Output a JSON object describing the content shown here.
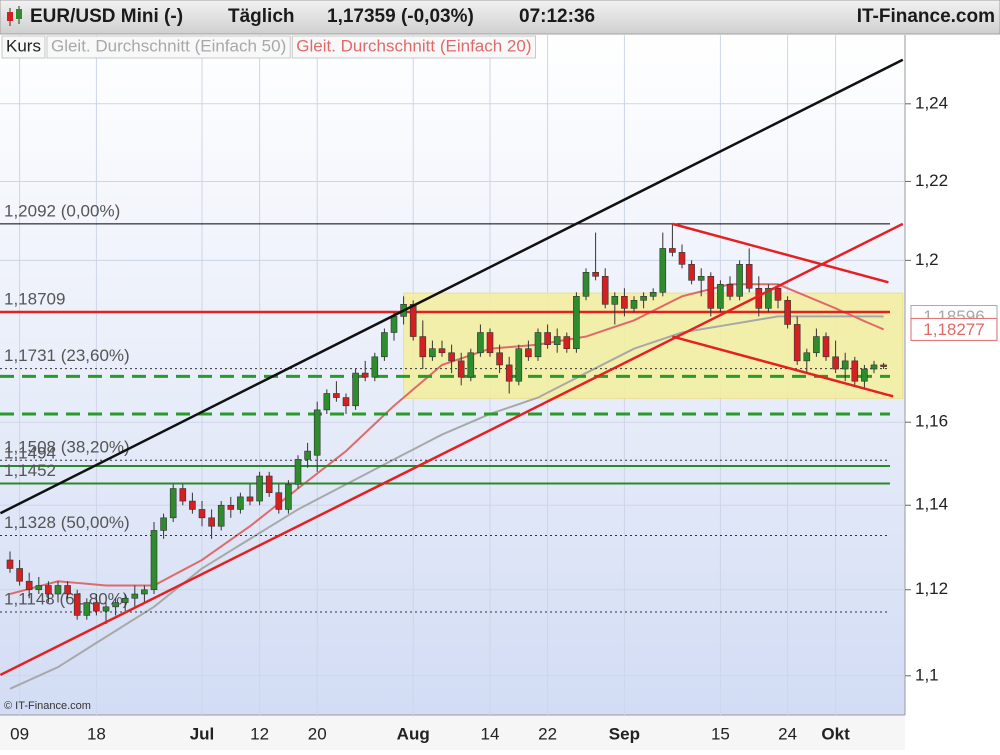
{
  "chart_data": {
    "type": "candlestick",
    "title": "EUR/USD Mini (-)",
    "interval": "Täglich",
    "quote": "1,17359 (-0,03%)",
    "time": "07:12:36",
    "brand": "IT-Finance.com",
    "copyright": "© IT-Finance.com",
    "categories": [
      null,
      "09",
      null,
      null,
      null,
      null,
      null,
      null,
      null,
      "18",
      null,
      null,
      null,
      null,
      null,
      null,
      null,
      null,
      null,
      null,
      "Jul",
      null,
      null,
      null,
      null,
      null,
      "12",
      null,
      null,
      null,
      null,
      null,
      "20",
      null,
      null,
      null,
      null,
      null,
      null,
      null,
      null,
      null,
      "Aug",
      null,
      null,
      null,
      null,
      null,
      null,
      null,
      "14",
      null,
      null,
      null,
      null,
      null,
      "22",
      null,
      null,
      null,
      null,
      null,
      null,
      null,
      "Sep",
      null,
      null,
      null,
      null,
      null,
      null,
      null,
      null,
      null,
      "15",
      null,
      null,
      null,
      null,
      null,
      null,
      "24",
      null,
      null,
      null,
      null,
      "Okt",
      null,
      null,
      null,
      null,
      null
    ],
    "series": [
      {
        "name": "Kurs",
        "up_color": "#2e8b2e",
        "down_color": "#d42020",
        "open": [
          1.127,
          1.125,
          1.122,
          1.12,
          1.121,
          1.119,
          1.121,
          1.119,
          1.114,
          1.117,
          1.115,
          1.116,
          1.117,
          1.118,
          1.119,
          1.12,
          1.134,
          1.137,
          1.144,
          1.141,
          1.139,
          1.137,
          1.135,
          1.14,
          1.139,
          1.142,
          1.141,
          1.147,
          1.143,
          1.139,
          1.145,
          1.151,
          1.152,
          1.163,
          1.167,
          1.166,
          1.164,
          1.172,
          1.171,
          1.176,
          1.182,
          1.186,
          1.189,
          1.181,
          1.176,
          1.178,
          1.177,
          1.175,
          1.171,
          1.177,
          1.182,
          1.177,
          1.174,
          1.17,
          1.178,
          1.176,
          1.182,
          1.179,
          1.181,
          1.178,
          1.191,
          1.197,
          1.196,
          1.189,
          1.191,
          1.188,
          1.19,
          1.191,
          1.192,
          1.203,
          1.202,
          1.199,
          1.195,
          1.196,
          1.188,
          1.194,
          1.191,
          1.199,
          1.193,
          1.188,
          1.193,
          1.19,
          1.184,
          1.175,
          1.177,
          1.181,
          1.176,
          1.173,
          1.175,
          1.17,
          1.173,
          1.174
        ],
        "high": [
          1.129,
          1.127,
          1.124,
          1.123,
          1.122,
          1.122,
          1.122,
          1.12,
          1.118,
          1.119,
          1.117,
          1.118,
          1.119,
          1.121,
          1.121,
          1.136,
          1.138,
          1.145,
          1.145,
          1.143,
          1.141,
          1.139,
          1.141,
          1.142,
          1.143,
          1.145,
          1.148,
          1.148,
          1.145,
          1.146,
          1.152,
          1.155,
          1.165,
          1.168,
          1.17,
          1.167,
          1.173,
          1.175,
          1.177,
          1.183,
          1.187,
          1.191,
          1.19,
          1.185,
          1.18,
          1.18,
          1.179,
          1.177,
          1.178,
          1.184,
          1.183,
          1.179,
          1.176,
          1.179,
          1.18,
          1.183,
          1.184,
          1.183,
          1.182,
          1.192,
          1.198,
          1.207,
          1.198,
          1.192,
          1.193,
          1.191,
          1.192,
          1.193,
          1.207,
          1.2092,
          1.204,
          1.2,
          1.198,
          1.197,
          1.195,
          1.196,
          1.2,
          1.203,
          1.196,
          1.194,
          1.194,
          1.191,
          1.186,
          1.178,
          1.183,
          1.182,
          1.18,
          1.177,
          1.176,
          1.174,
          1.175,
          1.1745
        ],
        "low": [
          1.124,
          1.121,
          1.118,
          1.119,
          1.117,
          1.117,
          1.118,
          1.113,
          1.113,
          1.114,
          1.112,
          1.114,
          1.115,
          1.116,
          1.117,
          1.119,
          1.132,
          1.136,
          1.14,
          1.138,
          1.135,
          1.132,
          1.134,
          1.137,
          1.138,
          1.14,
          1.14,
          1.142,
          1.138,
          1.138,
          1.144,
          1.149,
          1.148,
          1.162,
          1.165,
          1.162,
          1.163,
          1.17,
          1.17,
          1.175,
          1.18,
          1.184,
          1.18,
          1.173,
          1.175,
          1.176,
          1.172,
          1.169,
          1.17,
          1.176,
          1.176,
          1.172,
          1.167,
          1.169,
          1.175,
          1.175,
          1.178,
          1.177,
          1.177,
          1.177,
          1.19,
          1.195,
          1.188,
          1.184,
          1.186,
          1.187,
          1.188,
          1.19,
          1.191,
          1.201,
          1.198,
          1.194,
          1.191,
          1.186,
          1.187,
          1.19,
          1.19,
          1.192,
          1.186,
          1.187,
          1.188,
          1.183,
          1.174,
          1.172,
          1.176,
          1.175,
          1.172,
          1.17,
          1.169,
          1.168,
          1.172,
          1.173
        ],
        "close": [
          1.125,
          1.122,
          1.12,
          1.121,
          1.119,
          1.121,
          1.119,
          1.114,
          1.117,
          1.115,
          1.116,
          1.117,
          1.118,
          1.119,
          1.12,
          1.134,
          1.137,
          1.144,
          1.141,
          1.139,
          1.137,
          1.135,
          1.14,
          1.139,
          1.142,
          1.141,
          1.147,
          1.143,
          1.139,
          1.145,
          1.151,
          1.153,
          1.163,
          1.167,
          1.166,
          1.164,
          1.172,
          1.171,
          1.176,
          1.182,
          1.186,
          1.189,
          1.181,
          1.176,
          1.178,
          1.177,
          1.175,
          1.171,
          1.177,
          1.182,
          1.177,
          1.174,
          1.17,
          1.178,
          1.176,
          1.182,
          1.179,
          1.181,
          1.178,
          1.191,
          1.197,
          1.196,
          1.189,
          1.191,
          1.188,
          1.19,
          1.191,
          1.192,
          1.203,
          1.202,
          1.199,
          1.195,
          1.196,
          1.188,
          1.194,
          1.191,
          1.199,
          1.193,
          1.188,
          1.193,
          1.19,
          1.184,
          1.175,
          1.177,
          1.181,
          1.176,
          1.173,
          1.175,
          1.17,
          1.173,
          1.174,
          1.17359
        ]
      },
      {
        "name": "Gleit. Durchschnitt (Einfach 50)",
        "color": "#a8a8a8",
        "last_label": "1,18596",
        "values": [
          1.097,
          1.098,
          1.099,
          1.1,
          1.101,
          1.102,
          1.1034,
          1.1048,
          1.1062,
          1.1076,
          1.109,
          1.1104,
          1.1118,
          1.1132,
          1.1146,
          1.116,
          1.1178,
          1.1196,
          1.1214,
          1.1232,
          1.125,
          1.1264,
          1.1278,
          1.1292,
          1.1306,
          1.132,
          1.1334,
          1.1348,
          1.1362,
          1.1376,
          1.139,
          1.1402,
          1.1414,
          1.1426,
          1.1438,
          1.145,
          1.1462,
          1.1474,
          1.1486,
          1.1498,
          1.151,
          1.1522,
          1.1534,
          1.1546,
          1.1558,
          1.157,
          1.158,
          1.159,
          1.16,
          1.161,
          1.162,
          1.1628,
          1.1636,
          1.1644,
          1.1652,
          1.166,
          1.1672,
          1.1684,
          1.1696,
          1.1708,
          1.172,
          1.1732,
          1.1744,
          1.1756,
          1.1768,
          1.178,
          1.1788,
          1.1796,
          1.1804,
          1.1812,
          1.182,
          1.1824,
          1.1828,
          1.1832,
          1.1836,
          1.184,
          1.1844,
          1.1848,
          1.1852,
          1.1856,
          1.186,
          1.186,
          1.186,
          1.186,
          1.186,
          1.186,
          1.186,
          1.186,
          1.186,
          1.186,
          1.186,
          1.18596
        ]
      },
      {
        "name": "Gleit. Durchschnitt (Einfach 20)",
        "color": "#e06a6a",
        "last_label": "1,18277",
        "values": [
          1.119,
          1.1196,
          1.1202,
          1.1208,
          1.1214,
          1.122,
          1.1218,
          1.1216,
          1.1214,
          1.1212,
          1.121,
          1.121,
          1.121,
          1.121,
          1.121,
          1.121,
          1.1222,
          1.1234,
          1.1246,
          1.1258,
          1.127,
          1.1286,
          1.1302,
          1.1318,
          1.1334,
          1.135,
          1.1368,
          1.1386,
          1.1404,
          1.1422,
          1.144,
          1.1458,
          1.1476,
          1.1494,
          1.1512,
          1.153,
          1.1552,
          1.1574,
          1.1596,
          1.1618,
          1.164,
          1.166,
          1.168,
          1.17,
          1.172,
          1.174,
          1.1748,
          1.1756,
          1.1764,
          1.1772,
          1.178,
          1.1782,
          1.1784,
          1.1786,
          1.1788,
          1.179,
          1.1794,
          1.1798,
          1.1802,
          1.1806,
          1.181,
          1.1818,
          1.1826,
          1.1834,
          1.1842,
          1.185,
          1.1862,
          1.1874,
          1.1886,
          1.1898,
          1.191,
          1.1916,
          1.1922,
          1.1928,
          1.1934,
          1.194,
          1.194,
          1.194,
          1.194,
          1.194,
          1.194,
          1.193,
          1.192,
          1.191,
          1.19,
          1.189,
          1.188,
          1.1869,
          1.1859,
          1.1848,
          1.1838,
          1.18277
        ]
      }
    ],
    "levels": [
      {
        "label": "1,2092 (0,00%)",
        "value": 1.2092,
        "color": "#000000",
        "style": "thin"
      },
      {
        "label": "1,18709",
        "value": 1.18709,
        "color": "#e62020",
        "style": "thick"
      },
      {
        "label": "1,1731 (23,60%)",
        "value": 1.1731,
        "color": "#333333",
        "style": "dotted"
      },
      {
        "value": 1.1712,
        "color": "#2a9a2a",
        "style": "dashed"
      },
      {
        "value": 1.162,
        "color": "#2a9a2a",
        "style": "dashed"
      },
      {
        "label": "1,1508 (38,20%)",
        "value": 1.1508,
        "color": "#333333",
        "style": "dotted"
      },
      {
        "label": "1,1494",
        "value": 1.1494,
        "color": "#2a8a2a",
        "style": "solid"
      },
      {
        "label": "1,1452",
        "value": 1.1452,
        "color": "#2a8a2a",
        "style": "solid"
      },
      {
        "label": "1,1328 (50,00%)",
        "value": 1.1328,
        "color": "#333333",
        "style": "dotted"
      },
      {
        "label": "1,1148 (61,80%)",
        "value": 1.1148,
        "color": "#333333",
        "style": "dotted"
      }
    ],
    "trendlines": [
      {
        "color": "#111111",
        "x": [
          -1,
          93
        ],
        "values": [
          1.1381,
          1.2515
        ]
      },
      {
        "color": "#e62020",
        "x": [
          -1,
          93
        ],
        "values": [
          1.1002,
          1.2092
        ]
      },
      {
        "color": "#e62020",
        "x": [
          69,
          91.5
        ],
        "values": [
          1.2092,
          1.1945
        ]
      },
      {
        "color": "#e62020",
        "x": [
          69,
          92
        ],
        "values": [
          1.181,
          1.1663
        ]
      }
    ],
    "zone": {
      "color": "#f3ef9c",
      "x": [
        41,
        93
      ],
      "values": [
        1.1658,
        1.1918
      ]
    },
    "ylim": [
      1.091,
      1.258
    ],
    "yticks": [
      {
        "value": 1.1,
        "label": "1,1"
      },
      {
        "value": 1.12,
        "label": "1,12"
      },
      {
        "value": 1.14,
        "label": "1,14"
      },
      {
        "value": 1.16,
        "label": "1,16"
      },
      {
        "value": 1.2,
        "label": "1,2"
      },
      {
        "value": 1.22,
        "label": "1,22"
      },
      {
        "value": 1.24,
        "label": "1,24"
      }
    ],
    "log_scale": true,
    "grid": true
  }
}
